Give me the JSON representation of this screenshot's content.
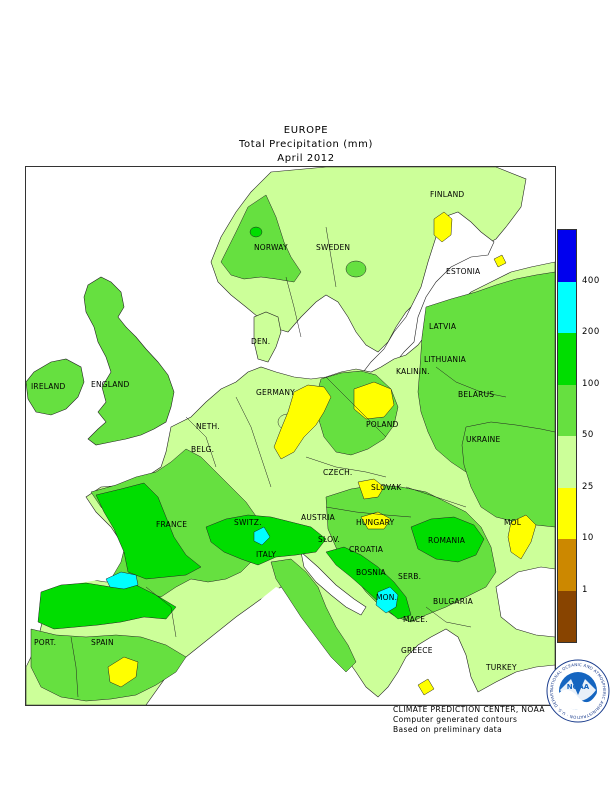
{
  "header": {
    "region": "EUROPE",
    "variable": "Total Precipitation (mm)",
    "period": "April 2012"
  },
  "map": {
    "country_labels": [
      "NORWAY",
      "SWEDEN",
      "FINLAND",
      "ESTONIA",
      "LATVIA",
      "LITHUANIA",
      "DEN.",
      "ENGLAND",
      "IRELAND",
      "NETH.",
      "BELG.",
      "GERMANY",
      "POLAND",
      "BELARUS",
      "CZECH.",
      "SLOVAK",
      "UKRAINE",
      "FRANCE",
      "SWITZ.",
      "AUSTRIA",
      "HUNGARY",
      "ROMANIA",
      "MOL",
      "SLOV.",
      "CROATIA",
      "BOSNIA",
      "SERB.",
      "ITALY",
      "MON.",
      "BULGARIA",
      "MACE.",
      "GREECE",
      "TURKEY",
      "SPAIN",
      "PORT.",
      "KALININ."
    ]
  },
  "legend": {
    "ticks": [
      "400",
      "200",
      "100",
      "50",
      "25",
      "10",
      "1"
    ],
    "colors": [
      "#0000ee",
      "#00ffff",
      "#00dd00",
      "#66e040",
      "#ccff99",
      "#ffff00",
      "#cc8800",
      "#884400"
    ]
  },
  "credits": {
    "line1": "CLIMATE PREDICTION CENTER, NOAA",
    "line2": "Computer generated contours",
    "line3": "Based on preliminary data"
  },
  "logo": {
    "text": "NOAA",
    "ring_text": "NATIONAL OCEANIC AND ATMOSPHERIC ADMINISTRATION · U.S. DEPARTMENT OF COMMERCE"
  }
}
